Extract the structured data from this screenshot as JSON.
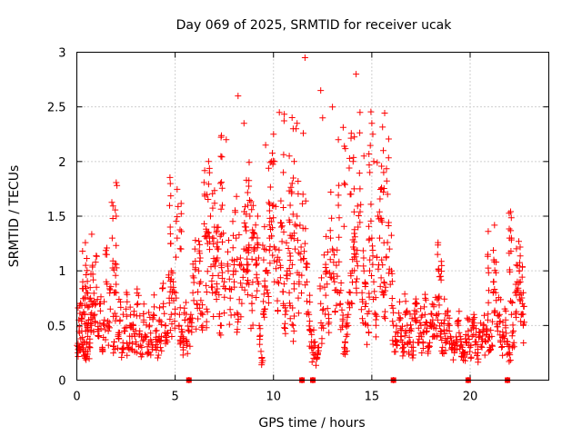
{
  "chart_data": {
    "type": "scatter",
    "title": "Day 069 of 2025, SRMTID for receiver ucak",
    "xlabel": "GPS time / hours",
    "ylabel": "SRMTID / TECUs",
    "xlim": [
      0,
      24
    ],
    "ylim": [
      0,
      3
    ],
    "xticks": [
      0,
      5,
      10,
      15,
      20
    ],
    "yticks": [
      0,
      0.5,
      1,
      1.5,
      2,
      2.5,
      3
    ],
    "grid": true,
    "marker": "+",
    "color": "#ff0000",
    "series": [
      {
        "name": "SRMTID",
        "x": [
          0.05,
          0.1,
          0.15,
          0.2,
          0.25,
          0.3,
          0.35,
          0.4,
          0.45,
          0.5,
          0.55,
          0.6,
          0.65,
          0.7,
          0.75,
          0.8,
          0.9,
          1.0,
          1.1,
          1.2,
          1.3,
          1.4,
          1.5,
          1.6,
          1.7,
          1.8,
          1.9,
          2.0,
          2.1,
          2.2,
          2.3,
          2.4,
          2.5,
          2.6,
          2.7,
          2.8,
          2.9,
          3.0,
          3.1,
          3.2,
          3.3,
          3.4,
          3.5,
          3.6,
          3.7,
          3.8,
          3.9,
          4.0,
          4.1,
          4.2,
          4.3,
          4.4,
          4.5,
          4.6,
          4.7,
          4.8,
          4.9,
          5.0,
          5.1,
          5.2,
          5.3,
          5.4,
          5.5,
          5.6,
          5.7,
          5.8,
          5.9,
          6.0,
          6.1,
          6.2,
          6.3,
          6.4,
          6.5,
          6.6,
          6.7,
          6.8,
          6.9,
          7.0,
          7.1,
          7.2,
          7.3,
          7.4,
          7.5,
          7.6,
          7.7,
          7.8,
          7.9,
          8.0,
          8.1,
          8.2,
          8.3,
          8.4,
          8.5,
          8.6,
          8.7,
          8.8,
          8.9,
          9.0,
          9.1,
          9.2,
          9.3,
          9.4,
          9.5,
          9.6,
          9.7,
          9.8,
          9.9,
          10.0,
          10.1,
          10.2,
          10.3,
          10.4,
          10.5,
          10.6,
          10.7,
          10.8,
          10.9,
          11.0,
          11.1,
          11.2,
          11.3,
          11.4,
          11.5,
          11.6,
          11.7,
          11.8,
          11.9,
          12.0,
          12.1,
          12.2,
          12.3,
          12.4,
          12.5,
          12.6,
          12.7,
          12.8,
          12.9,
          13.0,
          13.1,
          13.2,
          13.3,
          13.4,
          13.5,
          13.6,
          13.7,
          13.8,
          13.9,
          14.0,
          14.1,
          14.2,
          14.3,
          14.4,
          14.5,
          14.6,
          14.7,
          14.8,
          14.9,
          15.0,
          15.1,
          15.2,
          15.3,
          15.4,
          15.5,
          15.6,
          15.7,
          15.8,
          15.9,
          16.0,
          16.1,
          16.2,
          16.3,
          16.4,
          16.5,
          16.6,
          16.7,
          16.8,
          16.9,
          17.0,
          17.1,
          17.2,
          17.3,
          17.4,
          17.5,
          17.6,
          17.7,
          17.8,
          17.9,
          18.0,
          18.1,
          18.2,
          18.3,
          18.4,
          18.5,
          18.6,
          18.7,
          18.8,
          18.9,
          19.0,
          19.1,
          19.2,
          19.3,
          19.4,
          19.5,
          19.6,
          19.7,
          19.8,
          19.9,
          20.0,
          20.1,
          20.2,
          20.3,
          20.4,
          20.5,
          20.6,
          20.7,
          20.8,
          20.9,
          21.0,
          21.1,
          21.2,
          21.3,
          21.4,
          21.5,
          21.6,
          21.7,
          21.8,
          21.9,
          22.0,
          22.1,
          22.2,
          22.3,
          22.4,
          22.5,
          22.6,
          22.7,
          0.45,
          0.5,
          0.9,
          1.9,
          2.0,
          4.75,
          4.8,
          5.3,
          6.6,
          6.7,
          6.9,
          7.1,
          7.3,
          7.35,
          8.2,
          8.5,
          8.6,
          8.7,
          8.9,
          9.2,
          9.5,
          9.6,
          9.8,
          9.9,
          10.0,
          10.05,
          10.3,
          10.5,
          10.8,
          10.85,
          10.95,
          11.0,
          11.05,
          11.15,
          11.2,
          11.6,
          12.4,
          12.5,
          13.0,
          13.3,
          13.6,
          13.9,
          14.05,
          14.1,
          14.2,
          14.4,
          14.6,
          14.9,
          15.0,
          15.05,
          15.1,
          15.5,
          15.6,
          18.4,
          18.5,
          20.9,
          21.2,
          22.0,
          22.1,
          22.5,
          22.7,
          5.7,
          11.45,
          12.0,
          16.1,
          19.9,
          21.9
        ],
        "y": [
          0.25,
          0.55,
          0.3,
          0.7,
          0.45,
          0.9,
          0.35,
          0.6,
          0.2,
          0.8,
          0.4,
          0.55,
          0.3,
          0.75,
          0.5,
          1.05,
          0.6,
          0.85,
          0.4,
          0.7,
          0.3,
          0.55,
          0.9,
          0.45,
          0.65,
          1.3,
          0.35,
          0.8,
          0.4,
          0.55,
          0.25,
          0.45,
          0.65,
          0.3,
          0.5,
          0.4,
          0.6,
          0.35,
          0.7,
          0.45,
          0.3,
          0.55,
          0.4,
          0.25,
          0.5,
          0.35,
          0.6,
          0.45,
          0.3,
          0.55,
          0.4,
          0.7,
          0.5,
          0.35,
          0.75,
          0.6,
          0.9,
          0.65,
          1.3,
          0.5,
          0.4,
          0.3,
          0.55,
          0.35,
          0.45,
          0.6,
          0.8,
          1.2,
          0.7,
          1.0,
          0.9,
          0.6,
          1.7,
          1.3,
          2.0,
          1.5,
          0.8,
          1.4,
          1.1,
          1.2,
          0.5,
          1.6,
          0.9,
          2.2,
          1.0,
          0.75,
          1.1,
          0.9,
          1.3,
          0.6,
          1.05,
          0.85,
          1.2,
          1.4,
          1.0,
          1.5,
          0.7,
          1.2,
          1.1,
          0.9,
          0.4,
          0.2,
          0.6,
          1.0,
          0.8,
          1.3,
          2.0,
          1.6,
          1.2,
          0.9,
          1.1,
          1.4,
          0.7,
          0.6,
          1.0,
          0.8,
          1.3,
          0.5,
          1.2,
          1.5,
          0.9,
          1.1,
          1.7,
          1.25,
          0.9,
          0.6,
          0.45,
          0.25,
          0.35,
          0.2,
          0.3,
          0.7,
          0.5,
          0.85,
          1.0,
          0.6,
          1.3,
          1.2,
          0.9,
          1.05,
          1.6,
          0.7,
          0.5,
          0.3,
          0.4,
          0.6,
          0.8,
          1.0,
          1.2,
          0.9,
          1.4,
          1.75,
          0.8,
          1.0,
          0.7,
          0.5,
          1.1,
          1.3,
          0.9,
          0.6,
          1.5,
          1.3,
          1.1,
          0.8,
          0.85,
          1.7,
          1.2,
          1.0,
          0.5,
          0.4,
          0.35,
          0.55,
          0.4,
          0.3,
          0.6,
          0.5,
          0.35,
          0.45,
          0.3,
          0.55,
          0.7,
          0.4,
          0.5,
          0.35,
          0.6,
          0.45,
          0.3,
          0.5,
          0.55,
          0.4,
          0.6,
          0.75,
          0.45,
          0.3,
          0.55,
          0.35,
          0.5,
          0.4,
          0.3,
          0.25,
          0.35,
          0.5,
          0.4,
          0.3,
          0.25,
          0.35,
          0.45,
          0.3,
          0.4,
          0.5,
          0.35,
          0.25,
          0.4,
          0.3,
          0.45,
          0.35,
          0.55,
          0.3,
          0.4,
          1.1,
          0.8,
          0.45,
          0.6,
          0.3,
          0.4,
          0.5,
          0.35,
          0.25,
          0.6,
          0.45,
          0.8,
          0.9,
          1.0,
          0.6,
          0.5,
          1.05,
          0.35,
          0.6,
          0.8,
          1.5,
          1.4,
          1.0,
          1.2,
          0.65,
          1.35,
          1.3,
          1.35,
          1.8,
          1.05,
          2.6,
          2.35,
          1.2,
          1.6,
          1.3,
          1.5,
          1.1,
          2.15,
          1.55,
          1.45,
          2.25,
          2.0,
          2.45,
          1.9,
          2.05,
          1.6,
          1.8,
          2.3,
          2.0,
          2.3,
          2.35,
          2.95,
          2.65,
          2.4,
          2.5,
          2.2,
          1.8,
          1.7,
          2.0,
          1.75,
          2.8,
          2.45,
          2.05,
          1.9,
          2.35,
          2.25,
          2.0,
          1.75,
          1.9,
          1.0,
          0.95,
          1.15,
          0.9,
          1.3,
          1.3,
          1.0,
          0.8,
          0,
          0,
          0,
          0,
          0,
          0
        ]
      }
    ]
  }
}
